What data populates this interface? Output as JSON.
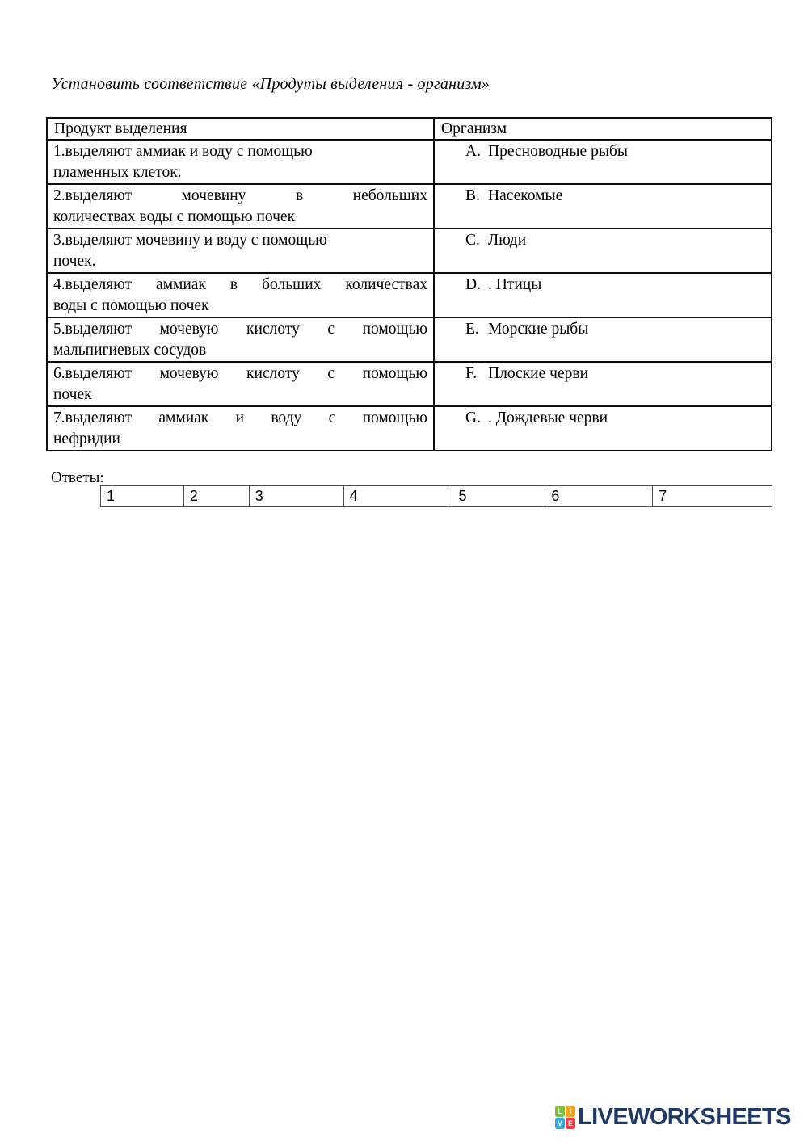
{
  "title": "Установить соответствие «Продуты выделения - организм»",
  "table": {
    "headers": [
      "Продукт выделения",
      "Организм"
    ],
    "rows": [
      {
        "product_lines": [
          "1.выделяют аммиак и воду с помощью",
          "пламенных клеток."
        ],
        "justified": false,
        "letter": "A.",
        "organism": "Пресноводные рыбы"
      },
      {
        "product_lines": [
          "2.выделяют мочевину в небольших",
          "количествах воды с помощью почек"
        ],
        "justified": true,
        "letter": "B.",
        "organism": "Насекомые"
      },
      {
        "product_lines": [
          "3.выделяют мочевину и воду с помощью",
          "почек."
        ],
        "justified": false,
        "letter": "C.",
        "organism": "Люди"
      },
      {
        "product_lines": [
          "4.выделяют аммиак в больших количествах",
          "воды с помощью почек"
        ],
        "justified": true,
        "letter": "D.",
        "organism": ". Птицы"
      },
      {
        "product_lines": [
          "5.выделяют мочевую кислоту с помощью",
          "мальпигиевых сосудов"
        ],
        "justified": true,
        "letter": "E.",
        "organism": "Морские рыбы"
      },
      {
        "product_lines": [
          "6.выделяют мочевую кислоту с помощью",
          "почек"
        ],
        "justified": true,
        "letter": "F.",
        "organism": "Плоские черви"
      },
      {
        "product_lines": [
          "7.выделяют аммиак и воду с помощью",
          "нефридии"
        ],
        "justified": true,
        "letter": "G.",
        "organism": ". Дождевые черви"
      }
    ]
  },
  "answers": {
    "label": "Ответы:",
    "cells": [
      "1",
      "2",
      "3",
      "4",
      "5",
      "6",
      "7"
    ]
  },
  "logo": {
    "text": "LIVEWORKSHEETS",
    "text_color": "#1f3a68",
    "squares": [
      {
        "letter": "L",
        "color": "#7fc142"
      },
      {
        "letter": "I",
        "color": "#f7a21b"
      },
      {
        "letter": "V",
        "color": "#33a8de"
      },
      {
        "letter": "E",
        "color": "#ee3a44"
      }
    ]
  }
}
